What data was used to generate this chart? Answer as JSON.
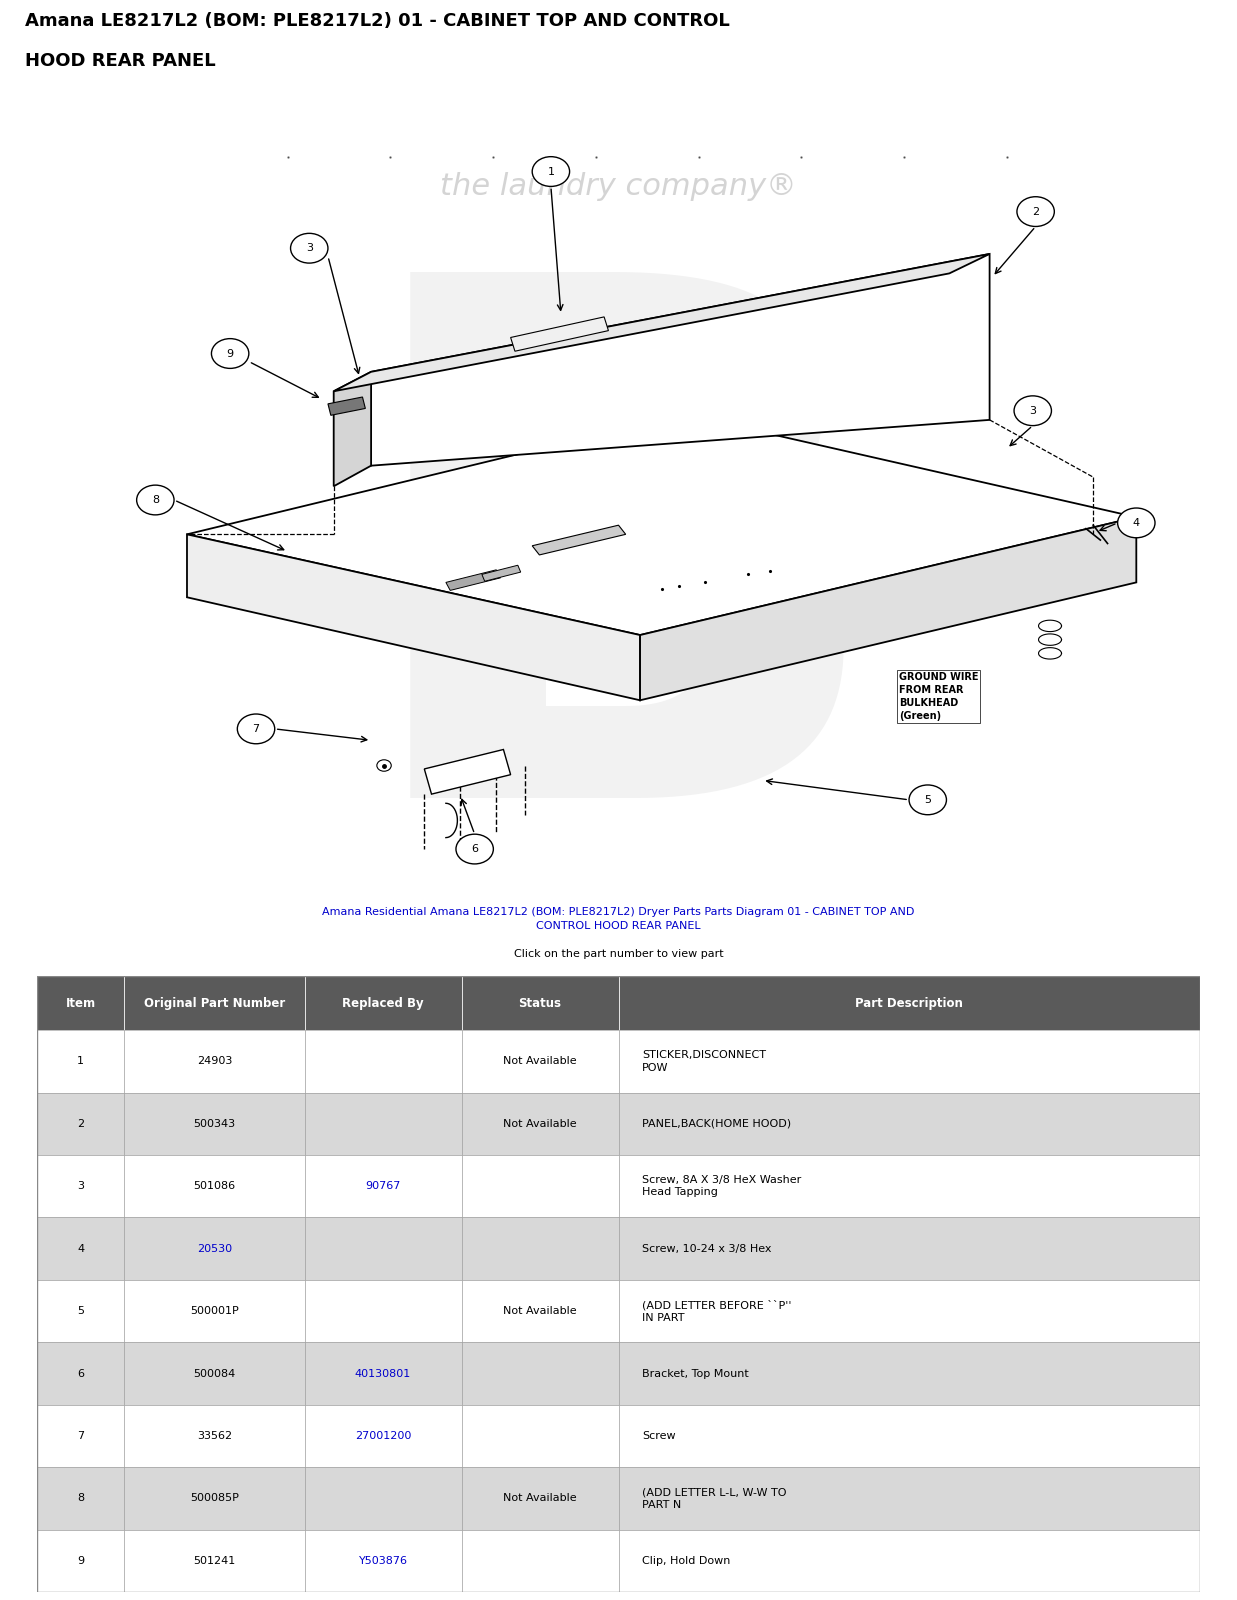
{
  "title_line1": "Amana LE8217L2 (BOM: PLE8217L2) 01 - CABINET TOP AND CONTROL",
  "title_line2": "HOOD REAR PANEL",
  "title_fontsize": 13,
  "bg_color": "#ffffff",
  "fig_width": 12.37,
  "fig_height": 16.0,
  "link_line1": "Amana Residential Amana LE8217L2 (BOM: PLE8217L2) Dryer Parts",
  "link_line1b": " Parts Diagram 01 - CABINET TOP AND",
  "link_line2": "CONTROL HOOD REAR PANEL",
  "click_text": "Click on the part number to view part",
  "table_header": [
    "Item",
    "Original Part Number",
    "Replaced By",
    "Status",
    "Part Description"
  ],
  "table_header_bg": "#5a5a5a",
  "table_header_color": "#ffffff",
  "table_row_bg_odd": "#ffffff",
  "table_row_bg_even": "#d8d8d8",
  "table_rows": [
    [
      "1",
      "24903",
      "",
      "Not Available",
      "STICKER,DISCONNECT\nPOW"
    ],
    [
      "2",
      "500343",
      "",
      "Not Available",
      "PANEL,BACK(HOME HOOD)"
    ],
    [
      "3",
      "501086",
      "90767",
      "",
      "Screw, 8A X 3/8 HeX Washer\nHead Tapping"
    ],
    [
      "4",
      "20530",
      "",
      "",
      "Screw, 10-24 x 3/8 Hex"
    ],
    [
      "5",
      "500001P",
      "",
      "Not Available",
      "(ADD LETTER BEFORE ``P''\nIN PART"
    ],
    [
      "6",
      "500084",
      "40130801",
      "",
      "Bracket, Top Mount"
    ],
    [
      "7",
      "33562",
      "27001200",
      "",
      "Screw"
    ],
    [
      "8",
      "500085P",
      "",
      "Not Available",
      "(ADD LETTER L-L, W-W TO\nPART N"
    ],
    [
      "9",
      "501241",
      "Y503876",
      "",
      "Clip, Hold Down"
    ]
  ],
  "link_color": "#0000cc",
  "ground_wire_text": "GROUND WIRE\nFROM REAR\nBULKHEAD\n(Green)"
}
